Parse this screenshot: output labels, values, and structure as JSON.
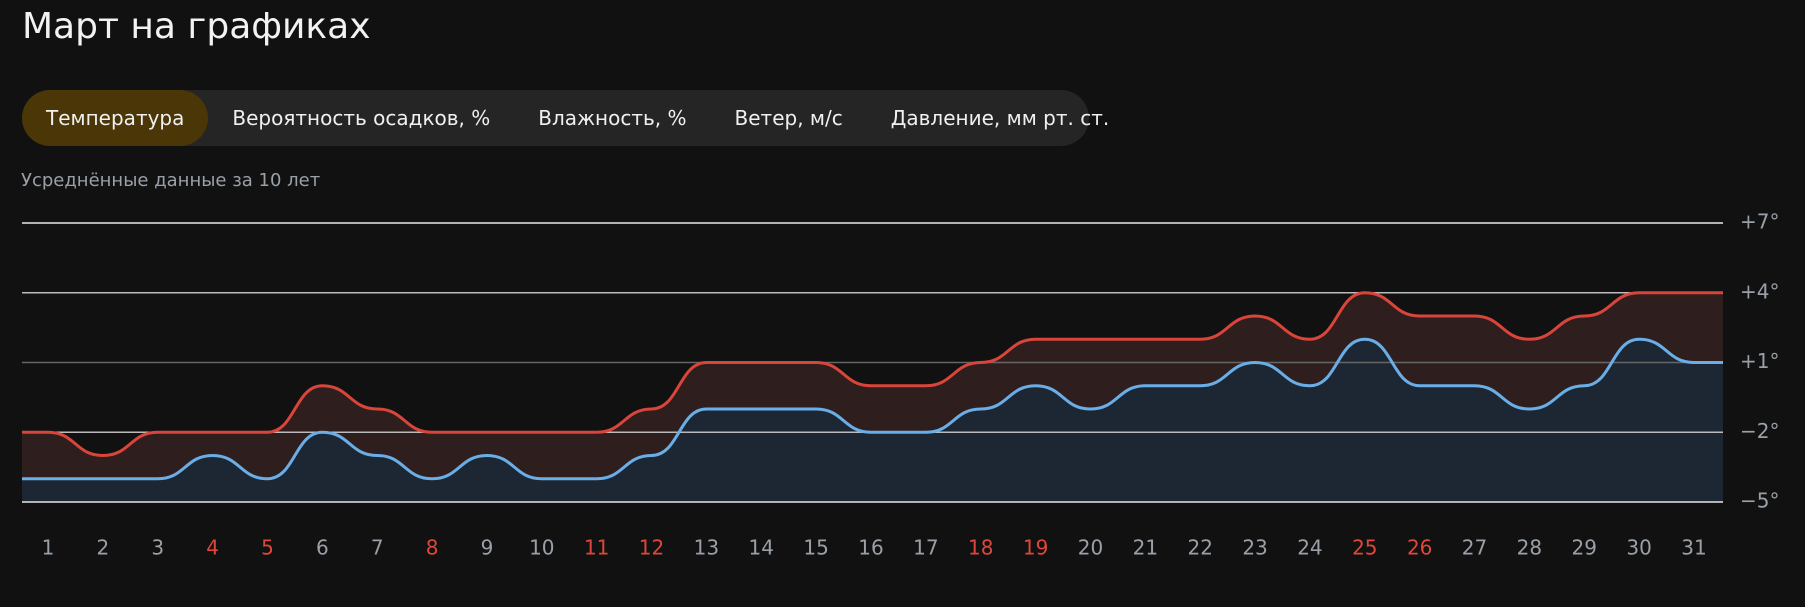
{
  "header": {
    "title": "Март на графиках"
  },
  "tabs": [
    {
      "label": "Температура",
      "active": true
    },
    {
      "label": "Вероятность осадков, %",
      "active": false
    },
    {
      "label": "Влажность, %",
      "active": false
    },
    {
      "label": "Ветер, м/с",
      "active": false
    },
    {
      "label": "Давление, мм рт. ст.",
      "active": false
    }
  ],
  "subtitle": "Усреднённые данные за 10 лет",
  "chart_data": {
    "type": "line",
    "categories": [
      "1",
      "2",
      "3",
      "4",
      "5",
      "6",
      "7",
      "8",
      "9",
      "10",
      "11",
      "12",
      "13",
      "14",
      "15",
      "16",
      "17",
      "18",
      "19",
      "20",
      "21",
      "22",
      "23",
      "24",
      "25",
      "26",
      "27",
      "28",
      "29",
      "30",
      "31"
    ],
    "category_colors": [
      "#9aa0a8",
      "#9aa0a8",
      "#9aa0a8",
      "#e0463a",
      "#e0463a",
      "#9aa0a8",
      "#9aa0a8",
      "#e0463a",
      "#9aa0a8",
      "#9aa0a8",
      "#e0463a",
      "#e0463a",
      "#9aa0a8",
      "#9aa0a8",
      "#9aa0a8",
      "#9aa0a8",
      "#9aa0a8",
      "#e0463a",
      "#e0463a",
      "#9aa0a8",
      "#9aa0a8",
      "#9aa0a8",
      "#9aa0a8",
      "#9aa0a8",
      "#e0463a",
      "#e0463a",
      "#9aa0a8",
      "#9aa0a8",
      "#9aa0a8",
      "#9aa0a8",
      "#9aa0a8"
    ],
    "series": [
      {
        "color": "#d9453a",
        "fill": "#2e1e1e",
        "values": [
          -2,
          -3,
          -2,
          -2,
          -2,
          0,
          -1,
          -2,
          -2,
          -2,
          -2,
          -1,
          1,
          1,
          1,
          0,
          0,
          1,
          2,
          2,
          2,
          2,
          3,
          2,
          4,
          3,
          3,
          2,
          3,
          4,
          4
        ]
      },
      {
        "color": "#6aaee8",
        "fill": "#1d2733",
        "values": [
          -4,
          -4,
          -4,
          -3,
          -4,
          -2,
          -3,
          -4,
          -3,
          -4,
          -4,
          -3,
          -1,
          -1,
          -1,
          -2,
          -2,
          -1,
          0,
          -1,
          0,
          0,
          1,
          0,
          2,
          0,
          0,
          -1,
          0,
          2,
          1
        ]
      }
    ],
    "ylim": [
      -5,
      7
    ],
    "yticks": [
      {
        "value": 7,
        "label": "+7°"
      },
      {
        "value": 4,
        "label": "+4°"
      },
      {
        "value": 1,
        "label": "+1°"
      },
      {
        "value": -2,
        "label": "−2°"
      },
      {
        "value": -5,
        "label": "−5°"
      }
    ],
    "grid": true
  }
}
